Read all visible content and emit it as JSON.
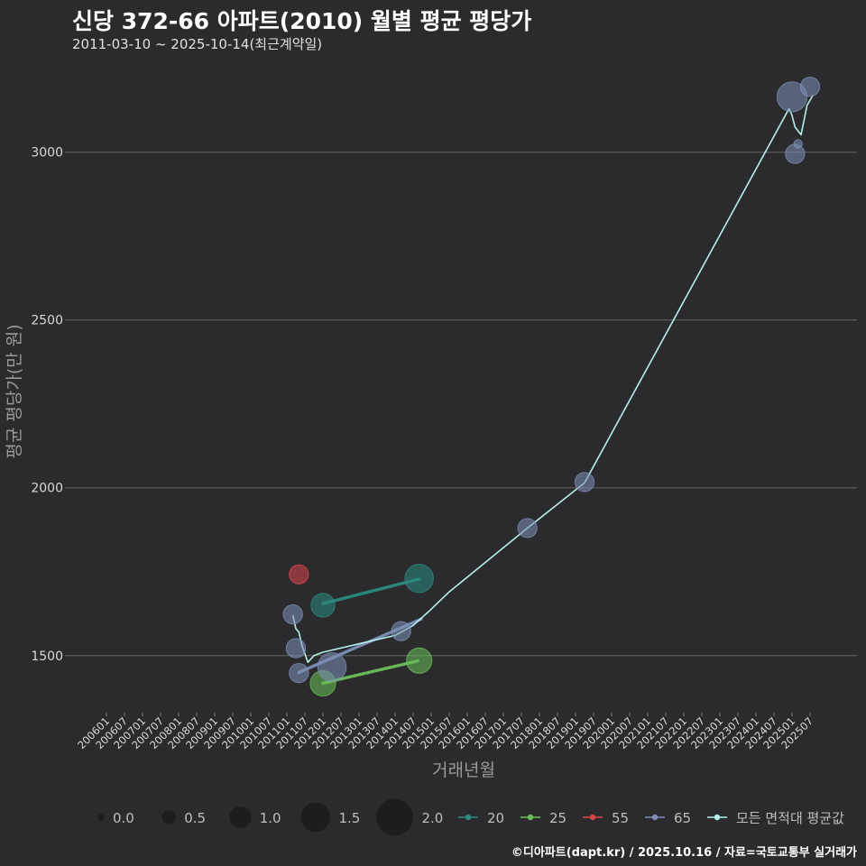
{
  "header": {
    "title": "신당 372-66 아파트(2010) 월별 평균 평당가",
    "subtitle": "2011-03-10 ~ 2025-10-14(최근계약일)"
  },
  "footer": {
    "credit": "©디아파트(dapt.kr) / 2025.10.16 / 자료=국토교통부 실거래가"
  },
  "colors": {
    "background": "#2b2b2d",
    "grid": "#5a5a5a",
    "s20": "#2a8a80",
    "s25": "#6abf5a",
    "s55": "#d9474a",
    "s65": "#7d8fb8",
    "avg": "#b4f0ec"
  },
  "chart_data": {
    "type": "line",
    "title": "신당 372-66 아파트(2010) 월별 평균 평당가",
    "xlabel": "거래년월",
    "ylabel": "평균 평당가(만 원)",
    "ylim": [
      1330,
      3260
    ],
    "yticks": [
      1500,
      2000,
      2500,
      3000
    ],
    "grid": true,
    "x_tick_labels": [
      "200601",
      "200607",
      "200701",
      "200707",
      "200801",
      "200807",
      "200901",
      "200907",
      "201001",
      "201007",
      "201101",
      "201107",
      "201201",
      "201207",
      "201301",
      "201307",
      "201401",
      "201407",
      "201501",
      "201507",
      "201601",
      "201607",
      "201701",
      "201707",
      "201801",
      "201807",
      "201901",
      "201907",
      "202001",
      "202007",
      "202101",
      "202107",
      "202201",
      "202207",
      "202301",
      "202307",
      "202401",
      "202407",
      "202501",
      "202507"
    ],
    "size_legend": {
      "title": "",
      "entries": [
        {
          "label": "0.0",
          "value": 0.0
        },
        {
          "label": "0.5",
          "value": 0.5
        },
        {
          "label": "1.0",
          "value": 1.0
        },
        {
          "label": "1.5",
          "value": 1.5
        },
        {
          "label": "2.0",
          "value": 2.0
        }
      ]
    },
    "series": [
      {
        "name": "20",
        "color": "#2a8a80",
        "points": [
          {
            "x": 2012.0,
            "y": 1650,
            "size": 1.2
          },
          {
            "x": 2014.667,
            "y": 1730,
            "size": 1.5
          }
        ],
        "line": [
          [
            2012.0,
            1655
          ],
          [
            2014.667,
            1728
          ]
        ],
        "dotted": true
      },
      {
        "name": "25",
        "color": "#6abf5a",
        "points": [
          {
            "x": 2012.0,
            "y": 1417,
            "size": 1.3
          },
          {
            "x": 2014.667,
            "y": 1485,
            "size": 1.3
          }
        ],
        "line": [
          [
            2012.0,
            1418
          ],
          [
            2014.667,
            1485
          ]
        ],
        "dotted": true
      },
      {
        "name": "55",
        "color": "#d9474a",
        "points": [
          {
            "x": 2011.333,
            "y": 1742,
            "size": 0.9
          }
        ],
        "line": [],
        "dotted": true
      },
      {
        "name": "65",
        "color": "#7d8fb8",
        "points": [
          {
            "x": 2011.167,
            "y": 1623,
            "size": 0.9
          },
          {
            "x": 2011.25,
            "y": 1522,
            "size": 0.9
          },
          {
            "x": 2011.333,
            "y": 1448,
            "size": 0.9
          },
          {
            "x": 2012.25,
            "y": 1466,
            "size": 1.5
          },
          {
            "x": 2014.167,
            "y": 1573,
            "size": 0.9
          },
          {
            "x": 2017.667,
            "y": 1880,
            "size": 0.9
          },
          {
            "x": 2019.25,
            "y": 2017,
            "size": 0.9
          },
          {
            "x": 2025.0,
            "y": 3165,
            "size": 1.6
          },
          {
            "x": 2025.083,
            "y": 2995,
            "size": 0.9
          },
          {
            "x": 2025.167,
            "y": 3025,
            "size": 0.2
          },
          {
            "x": 2025.5,
            "y": 3195,
            "size": 0.9
          }
        ],
        "line": [
          [
            2011.333,
            1450
          ],
          [
            2014.75,
            1610
          ]
        ],
        "dotted": true
      },
      {
        "name": "모든 면적대 평균값",
        "color": "#b4f0ec",
        "points": [],
        "line": [
          [
            2011.167,
            1620
          ],
          [
            2011.25,
            1580
          ],
          [
            2011.333,
            1570
          ],
          [
            2011.417,
            1530
          ],
          [
            2011.5,
            1505
          ],
          [
            2011.583,
            1480
          ],
          [
            2011.667,
            1490
          ],
          [
            2011.75,
            1500
          ],
          [
            2012.0,
            1510
          ],
          [
            2013.0,
            1535
          ],
          [
            2014.0,
            1560
          ],
          [
            2014.5,
            1590
          ],
          [
            2014.917,
            1630
          ],
          [
            2015.5,
            1690
          ],
          [
            2017.667,
            1880
          ],
          [
            2019.25,
            2015
          ],
          [
            2024.917,
            3130
          ],
          [
            2025.0,
            3110
          ],
          [
            2025.083,
            3075
          ],
          [
            2025.25,
            3052
          ],
          [
            2025.333,
            3095
          ],
          [
            2025.417,
            3140
          ],
          [
            2025.583,
            3170
          ]
        ],
        "dotted": false
      }
    ]
  }
}
